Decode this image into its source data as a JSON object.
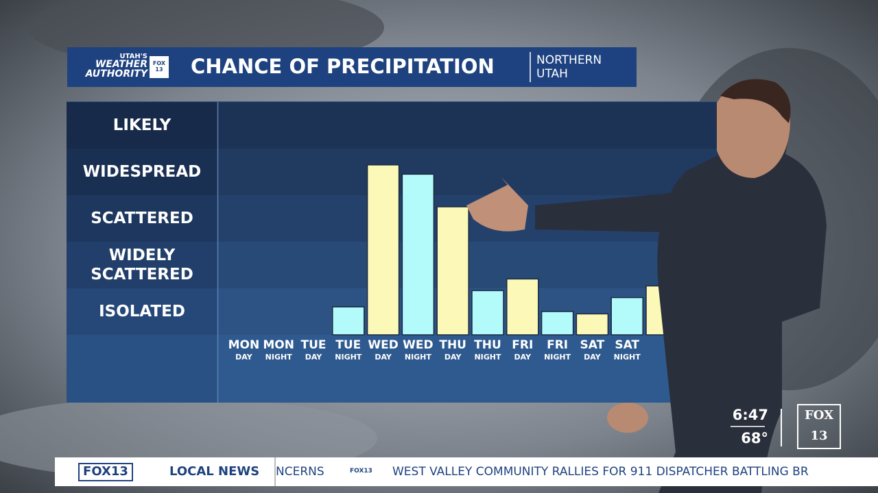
{
  "header": {
    "brand_top": "UTAH'S",
    "brand_mid": "WEATHER",
    "brand_bottom": "AUTHORITY",
    "brand_station": "FOX 13",
    "region_line1": "NORTHERN",
    "region_line2": "UTAH"
  },
  "chart_data": {
    "type": "bar",
    "title": "CHANCE OF PRECIPITATION",
    "categories": [
      "MON",
      "MON",
      "TUE",
      "TUE",
      "WED",
      "WED",
      "THU",
      "THU",
      "FRI",
      "FRI",
      "SAT",
      "SAT",
      null
    ],
    "sublabels": [
      "DAY",
      "NIGHT",
      "DAY",
      "NIGHT",
      "DAY",
      "NIGHT",
      "DAY",
      "NIGHT",
      "DAY",
      "NIGHT",
      "DAY",
      "NIGHT",
      null
    ],
    "values": [
      0,
      0,
      0,
      0.6,
      3.65,
      3.45,
      2.75,
      0.95,
      1.2,
      0.5,
      0.45,
      0.8,
      1.05
    ],
    "colors": [
      "#fcf9b8",
      "#b3fbfb",
      "#fcf9b8",
      "#b3fbfb",
      "#fcf9b8",
      "#b3fbfb",
      "#fcf9b8",
      "#b3fbfb",
      "#fcf9b8",
      "#b3fbfb",
      "#fcf9b8",
      "#b3fbfb",
      "#fcf9b8"
    ],
    "ylim": [
      0,
      5
    ],
    "yticks": [
      {
        "value": 0.5,
        "label": "ISOLATED"
      },
      {
        "value": 1.5,
        "label": "WIDELY SCATTERED"
      },
      {
        "value": 2.5,
        "label": "SCATTERED"
      },
      {
        "value": 3.5,
        "label": "WIDESPREAD"
      },
      {
        "value": 4.5,
        "label": "LIKELY"
      }
    ]
  },
  "clock": {
    "time": "6:47",
    "temp": "68°",
    "station_logo": "FOX 13"
  },
  "ticker": {
    "logo": "FOX13",
    "section": "LOCAL NEWS",
    "previous": "NCERNS",
    "small_logo": "FOX13",
    "headline": "WEST VALLEY COMMUNITY RALLIES FOR 911 DISPATCHER BATTLING BR"
  }
}
